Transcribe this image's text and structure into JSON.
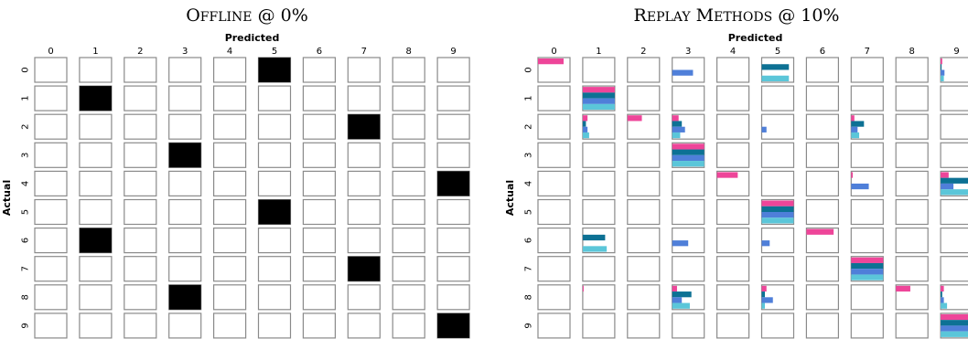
{
  "chart_data": [
    {
      "type": "heatmap",
      "title_main": "Offline",
      "title_suffix": " @ 0%",
      "xlabel": "Predicted",
      "ylabel": "Actual",
      "x_ticks": [
        "0",
        "1",
        "2",
        "3",
        "4",
        "5",
        "6",
        "7",
        "8",
        "9"
      ],
      "y_ticks": [
        "0",
        "1",
        "2",
        "3",
        "4",
        "5",
        "6",
        "7",
        "8",
        "9"
      ],
      "series_colors": [
        "#000000"
      ],
      "series": [
        {
          "name": "",
          "values": [
            [
              0,
              0,
              0,
              0,
              0,
              1,
              0,
              0,
              0,
              0
            ],
            [
              0,
              1,
              0,
              0,
              0,
              0,
              0,
              0,
              0,
              0
            ],
            [
              0,
              0,
              0,
              0,
              0,
              0,
              0,
              1,
              0,
              0
            ],
            [
              0,
              0,
              0,
              1,
              0,
              0,
              0,
              0,
              0,
              0
            ],
            [
              0,
              0,
              0,
              0,
              0,
              0,
              0,
              0,
              0,
              1
            ],
            [
              0,
              0,
              0,
              0,
              0,
              1,
              0,
              0,
              0,
              0
            ],
            [
              0,
              1,
              0,
              0,
              0,
              0,
              0,
              0,
              0,
              0
            ],
            [
              0,
              0,
              0,
              0,
              0,
              0,
              0,
              1,
              0,
              0
            ],
            [
              0,
              0,
              0,
              1,
              0,
              0,
              0,
              0,
              0,
              0
            ],
            [
              0,
              0,
              0,
              0,
              0,
              0,
              0,
              0,
              0,
              1
            ]
          ]
        }
      ]
    },
    {
      "type": "heatmap",
      "title_main": "Replay Methods",
      "title_suffix": " @ 10%",
      "xlabel": "Predicted",
      "ylabel": "Actual",
      "x_ticks": [
        "0",
        "1",
        "2",
        "3",
        "4",
        "5",
        "6",
        "7",
        "8",
        "9"
      ],
      "y_ticks": [
        "0",
        "1",
        "2",
        "3",
        "4",
        "5",
        "6",
        "7",
        "8",
        "9"
      ],
      "series_colors": [
        "#ee4599",
        "#0d7194",
        "#4f7fd9",
        "#5bc6d9"
      ],
      "series": [
        {
          "name": "",
          "values": [
            [
              0.8,
              0,
              0,
              0,
              0,
              0,
              0,
              0,
              0,
              0.05
            ],
            [
              0,
              1,
              0,
              0,
              0,
              0,
              0,
              0,
              0,
              0
            ],
            [
              0,
              0.15,
              0.45,
              0.2,
              0,
              0,
              0,
              0.1,
              0,
              0
            ],
            [
              0,
              0,
              0,
              1,
              0,
              0,
              0,
              0,
              0,
              0
            ],
            [
              0,
              0,
              0,
              0,
              0.65,
              0,
              0,
              0.05,
              0,
              0.25
            ],
            [
              0,
              0,
              0,
              0,
              0,
              1,
              0,
              0,
              0,
              0
            ],
            [
              0,
              0,
              0,
              0,
              0,
              0,
              0.85,
              0,
              0,
              0
            ],
            [
              0,
              0,
              0,
              0,
              0,
              0,
              0,
              1,
              0,
              0
            ],
            [
              0,
              0.03,
              0,
              0.15,
              0,
              0.15,
              0,
              0,
              0.45,
              0.1
            ],
            [
              0,
              0,
              0,
              0,
              0,
              0,
              0,
              0,
              0,
              1
            ]
          ]
        },
        {
          "name": "",
          "values": [
            [
              0,
              0,
              0,
              0,
              0,
              0.85,
              0,
              0,
              0,
              0.03
            ],
            [
              0,
              1,
              0,
              0,
              0,
              0,
              0,
              0,
              0,
              0
            ],
            [
              0,
              0.1,
              0,
              0.3,
              0,
              0,
              0,
              0.4,
              0,
              0
            ],
            [
              0,
              0,
              0,
              1,
              0,
              0,
              0,
              0,
              0,
              0
            ],
            [
              0,
              0,
              0,
              0,
              0,
              0,
              0,
              0,
              0,
              1
            ],
            [
              0,
              0,
              0,
              0,
              0,
              1,
              0,
              0,
              0,
              0
            ],
            [
              0,
              0.7,
              0,
              0,
              0,
              0,
              0,
              0,
              0,
              0
            ],
            [
              0,
              0,
              0,
              0,
              0,
              0,
              0,
              1,
              0,
              0
            ],
            [
              0,
              0,
              0,
              0.6,
              0,
              0.1,
              0,
              0,
              0,
              0.05
            ],
            [
              0,
              0,
              0,
              0,
              0,
              0,
              0,
              0,
              0,
              1
            ]
          ]
        },
        {
          "name": "",
          "values": [
            [
              0,
              0,
              0,
              0.65,
              0,
              0,
              0,
              0,
              0,
              0.12
            ],
            [
              0,
              1,
              0,
              0,
              0,
              0,
              0,
              0,
              0,
              0
            ],
            [
              0,
              0.15,
              0,
              0.4,
              0,
              0.15,
              0,
              0.2,
              0,
              0
            ],
            [
              0,
              0,
              0,
              1,
              0,
              0,
              0,
              0,
              0,
              0
            ],
            [
              0,
              0,
              0,
              0,
              0,
              0,
              0,
              0.55,
              0,
              0.4
            ],
            [
              0,
              0,
              0,
              0,
              0,
              1,
              0,
              0,
              0,
              0
            ],
            [
              0,
              0,
              0,
              0.5,
              0,
              0.25,
              0,
              0,
              0,
              0
            ],
            [
              0,
              0,
              0,
              0,
              0,
              0,
              0,
              1,
              0,
              0
            ],
            [
              0,
              0,
              0,
              0.3,
              0,
              0.35,
              0,
              0,
              0,
              0.1
            ],
            [
              0,
              0,
              0,
              0,
              0,
              0,
              0,
              0,
              0,
              1
            ]
          ]
        },
        {
          "name": "",
          "values": [
            [
              0,
              0,
              0,
              0,
              0,
              0.85,
              0,
              0,
              0,
              0.1
            ],
            [
              0,
              1,
              0,
              0,
              0,
              0,
              0,
              0,
              0,
              0
            ],
            [
              0,
              0.2,
              0,
              0.25,
              0,
              0,
              0,
              0.25,
              0,
              0
            ],
            [
              0,
              0,
              0,
              1,
              0,
              0,
              0,
              0,
              0,
              0
            ],
            [
              0,
              0,
              0,
              0,
              0,
              0,
              0,
              0,
              0,
              1
            ],
            [
              0,
              0,
              0,
              0,
              0,
              1,
              0,
              0,
              0,
              0
            ],
            [
              0,
              0.75,
              0,
              0,
              0,
              0,
              0,
              0,
              0,
              0
            ],
            [
              0,
              0,
              0,
              0,
              0,
              0,
              0,
              1,
              0,
              0
            ],
            [
              0,
              0,
              0,
              0.55,
              0,
              0.1,
              0,
              0,
              0,
              0.2
            ],
            [
              0,
              0,
              0,
              0,
              0,
              0,
              0,
              0,
              0,
              1
            ]
          ]
        }
      ]
    }
  ]
}
